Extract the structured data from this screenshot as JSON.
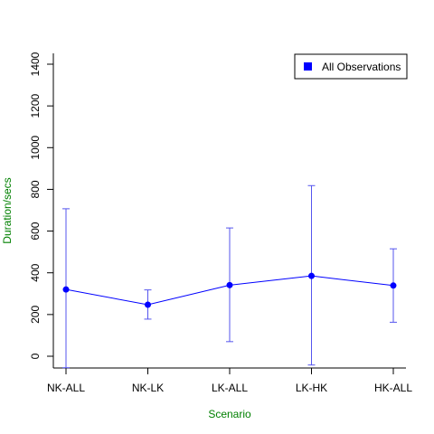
{
  "chart_data": {
    "type": "line",
    "title": "",
    "xlabel": "Scenario",
    "ylabel": "Duration/secs",
    "categories": [
      "NK-ALL",
      "NK-LK",
      "LK-ALL",
      "LK-HK",
      "HK-ALL"
    ],
    "series": [
      {
        "name": "All Observations",
        "values": [
          320,
          247,
          341,
          385,
          339
        ],
        "upper": [
          707,
          318,
          615,
          818,
          515
        ],
        "lower": [
          -55,
          178,
          70,
          -42,
          163
        ]
      }
    ],
    "yticks": [
      0,
      200,
      400,
      600,
      800,
      1000,
      1200,
      1400
    ],
    "ylim": [
      -55,
      1450
    ],
    "legend_position": "top-right",
    "grid": false
  },
  "colors": {
    "series": "#0000ff",
    "error_bars": "#5555ee",
    "axis_title": "#008000",
    "axis": "#000000"
  }
}
